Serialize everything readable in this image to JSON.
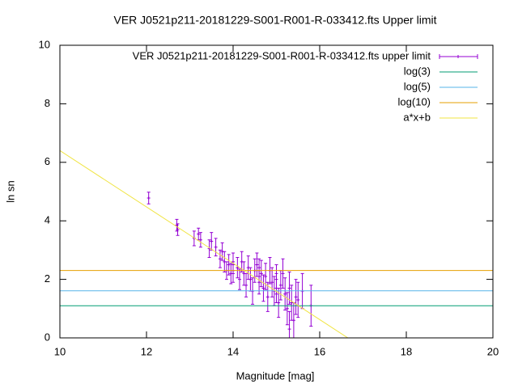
{
  "chart_data": {
    "type": "scatter",
    "title": "VER J0521p211-20181229-S001-R001-R-033412.fts Upper limit",
    "x_label": "Magnitude [mag]",
    "y_label": "ln sn",
    "xlim": [
      10,
      20
    ],
    "ylim": [
      0,
      10
    ],
    "xticks": [
      10,
      12,
      14,
      16,
      18,
      20
    ],
    "yticks": [
      0,
      2,
      4,
      6,
      8,
      10
    ],
    "legend": "top-right",
    "series": [
      {
        "name": "VER J0521p211-20181229-S001-R001-R-033412.fts upper limit",
        "type": "errorbars",
        "color": "#9400d3",
        "x": [
          12.05,
          12.7,
          12.72,
          13.1,
          13.2,
          13.25,
          13.45,
          13.5,
          13.6,
          13.7,
          13.75,
          13.8,
          13.85,
          13.9,
          13.95,
          14.0,
          14.1,
          14.15,
          14.2,
          14.25,
          14.3,
          14.35,
          14.4,
          14.45,
          14.5,
          14.55,
          14.6,
          14.65,
          14.7,
          14.75,
          14.8,
          14.85,
          14.9,
          14.95,
          15.0,
          15.05,
          15.1,
          15.15,
          15.2,
          15.25,
          15.3,
          15.35,
          15.4,
          15.45,
          15.5,
          15.6,
          15.8,
          14.6,
          14.0,
          15.0,
          15.3
        ],
        "values": [
          4.78,
          3.85,
          3.7,
          3.4,
          3.55,
          3.35,
          3.05,
          3.3,
          3.1,
          2.7,
          2.95,
          2.6,
          2.3,
          2.5,
          2.2,
          2.6,
          2.4,
          2.0,
          2.6,
          2.2,
          1.8,
          2.4,
          2.0,
          1.6,
          2.3,
          2.5,
          1.9,
          2.2,
          1.7,
          2.1,
          1.4,
          2.3,
          1.9,
          1.6,
          2.0,
          1.2,
          1.8,
          2.2,
          1.5,
          1.0,
          1.7,
          1.2,
          0.6,
          1.4,
          1.3,
          1.6,
          1.1,
          2.4,
          2.2,
          1.7,
          0.3
        ],
        "errors": [
          0.2,
          0.2,
          0.2,
          0.25,
          0.2,
          0.25,
          0.3,
          0.3,
          0.3,
          0.3,
          0.3,
          0.35,
          0.3,
          0.35,
          0.35,
          0.3,
          0.35,
          0.35,
          0.35,
          0.4,
          0.4,
          0.4,
          0.4,
          0.45,
          0.4,
          0.4,
          0.4,
          0.45,
          0.45,
          0.45,
          0.5,
          0.45,
          0.5,
          0.5,
          0.5,
          0.5,
          0.5,
          0.5,
          0.55,
          0.55,
          0.55,
          0.6,
          0.6,
          0.6,
          0.6,
          0.6,
          0.7,
          0.3,
          0.3,
          0.5,
          0.6
        ]
      },
      {
        "name": "log(3)",
        "type": "line",
        "color": "#009e73",
        "x": [
          10,
          20
        ],
        "values": [
          1.0986,
          1.0986
        ]
      },
      {
        "name": "log(5)",
        "type": "line",
        "color": "#56b4e9",
        "x": [
          10,
          20
        ],
        "values": [
          1.6094,
          1.6094
        ]
      },
      {
        "name": "log(10)",
        "type": "line",
        "color": "#e69f00",
        "x": [
          10,
          20
        ],
        "values": [
          2.3026,
          2.3026
        ]
      },
      {
        "name": "a*x+b",
        "type": "line",
        "color": "#f0e442",
        "x": [
          10,
          16.65
        ],
        "values": [
          6.4,
          0
        ]
      }
    ]
  }
}
